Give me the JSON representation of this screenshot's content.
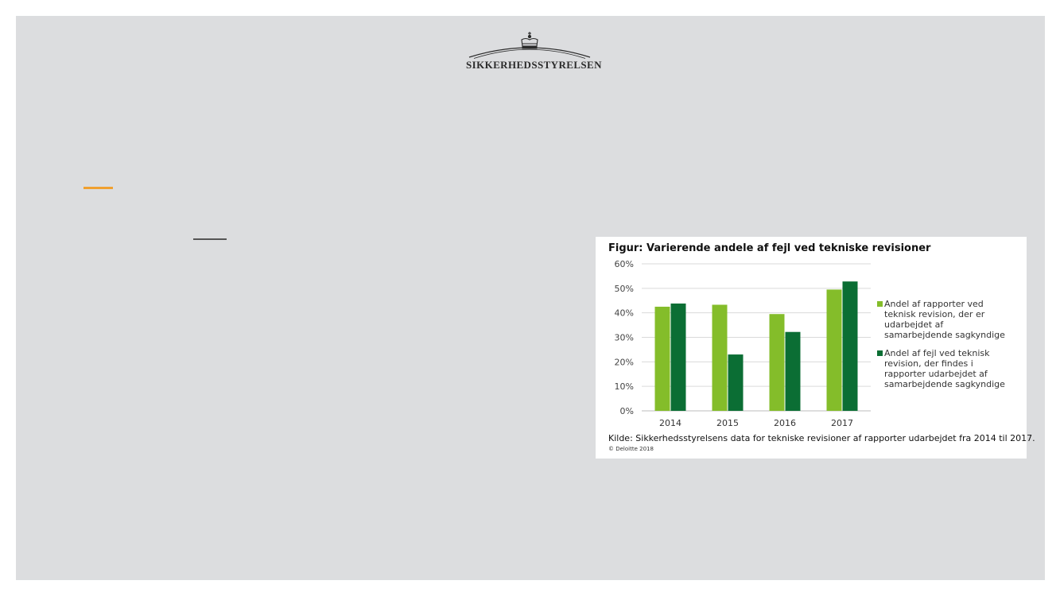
{
  "brand": {
    "name": "SIKKERHEDSSTYRELSEN",
    "logo_icon": "crown-icon"
  },
  "figure": {
    "title": "Figur: Varierende andele af fejl ved tekniske revisioner",
    "source": "Kilde: Sikkerhedsstyrelsens data for tekniske revisioner af rapporter udarbejdet fra 2014 til 2017.",
    "copyright": "© Deloitte 2018"
  },
  "colors": {
    "accent": "#f0a030",
    "series_light": "#84bd2a",
    "series_dark": "#0b6e34"
  },
  "chart_data": {
    "type": "bar",
    "title": "Figur: Varierende andele af fejl ved tekniske revisioner",
    "xlabel": "",
    "ylabel": "",
    "categories": [
      "2014",
      "2015",
      "2016",
      "2017"
    ],
    "series": [
      {
        "name": "Andel af rapporter ved teknisk revision, der er udarbejdet af samarbejdende sagkyndige",
        "lines": [
          "Andel af rapporter ved",
          "teknisk revision, der er",
          "udarbejdet af",
          "samarbejdende sagkyndige"
        ],
        "color": "#84bd2a",
        "values": [
          42.5,
          43.3,
          39.5,
          49.5
        ]
      },
      {
        "name": "Andel af fejl ved teknisk revision, der findes i rapporter udarbejdet af samarbejdende sagkyndige",
        "lines": [
          "Andel af fejl ved teknisk",
          "revision, der findes i",
          "rapporter udarbejdet af",
          "samarbejdende sagkyndige"
        ],
        "color": "#0b6e34",
        "values": [
          43.8,
          23,
          32.2,
          52.8
        ]
      }
    ],
    "yticks": [
      "0%",
      "10%",
      "20%",
      "30%",
      "40%",
      "50%",
      "60%"
    ],
    "ylim": [
      0,
      60
    ],
    "grid": true,
    "legend": "right"
  }
}
